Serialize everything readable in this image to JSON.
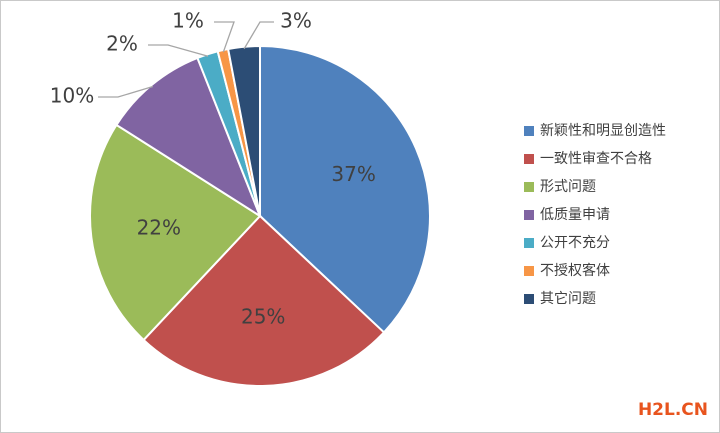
{
  "chart_data": {
    "type": "pie",
    "categories": [
      "新颖性和明显创造性",
      "一致性审查不合格",
      "形式问题",
      "低质量申请",
      "公开不充分",
      "不授权客体",
      "其它问题"
    ],
    "values": [
      37,
      25,
      22,
      10,
      2,
      1,
      3
    ],
    "value_labels": [
      "37%",
      "25%",
      "22%",
      "10%",
      "2%",
      "1%",
      "3%"
    ],
    "colors": [
      "#4f81bd",
      "#c0504d",
      "#9bbb59",
      "#8064a2",
      "#4bacc6",
      "#f79646",
      "#2c4d75"
    ],
    "legend": "right"
  },
  "watermark": "H2L.CN"
}
